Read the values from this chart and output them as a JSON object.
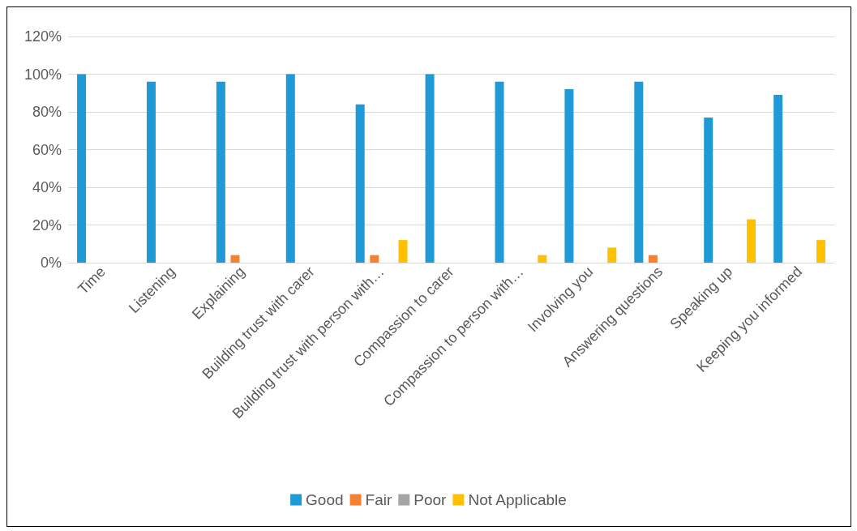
{
  "chart_data": {
    "type": "bar",
    "categories": [
      "Time",
      "Listening",
      "Explaining",
      "Building trust with carer",
      "Building trust with person with…",
      "Compassion to carer",
      "Compassion to person with…",
      "Involving you",
      "Answering questions",
      "Speaking up",
      "Keeping you informed"
    ],
    "series": [
      {
        "name": "Good",
        "color": "#1f9ad6",
        "values": [
          100,
          96,
          96,
          100,
          84,
          100,
          96,
          92,
          96,
          77,
          89
        ]
      },
      {
        "name": "Fair",
        "color": "#f58232",
        "values": [
          0,
          0,
          4,
          0,
          4,
          0,
          0,
          0,
          4,
          0,
          0
        ]
      },
      {
        "name": "Poor",
        "color": "#a5a5a5",
        "values": [
          0,
          0,
          0,
          0,
          0,
          0,
          0,
          0,
          0,
          0,
          0
        ]
      },
      {
        "name": "Not Applicable",
        "color": "#ffc000",
        "values": [
          0,
          0,
          0,
          0,
          12,
          0,
          4,
          8,
          0,
          23,
          12
        ]
      }
    ],
    "ylim": [
      0,
      120
    ],
    "yticks": [
      {
        "value": 0,
        "label": "0%"
      },
      {
        "value": 20,
        "label": "20%"
      },
      {
        "value": 40,
        "label": "40%"
      },
      {
        "value": 60,
        "label": "60%"
      },
      {
        "value": 80,
        "label": "80%"
      },
      {
        "value": 100,
        "label": "100%"
      },
      {
        "value": 120,
        "label": "120%"
      }
    ],
    "grid": "y",
    "legend": "bottom"
  }
}
